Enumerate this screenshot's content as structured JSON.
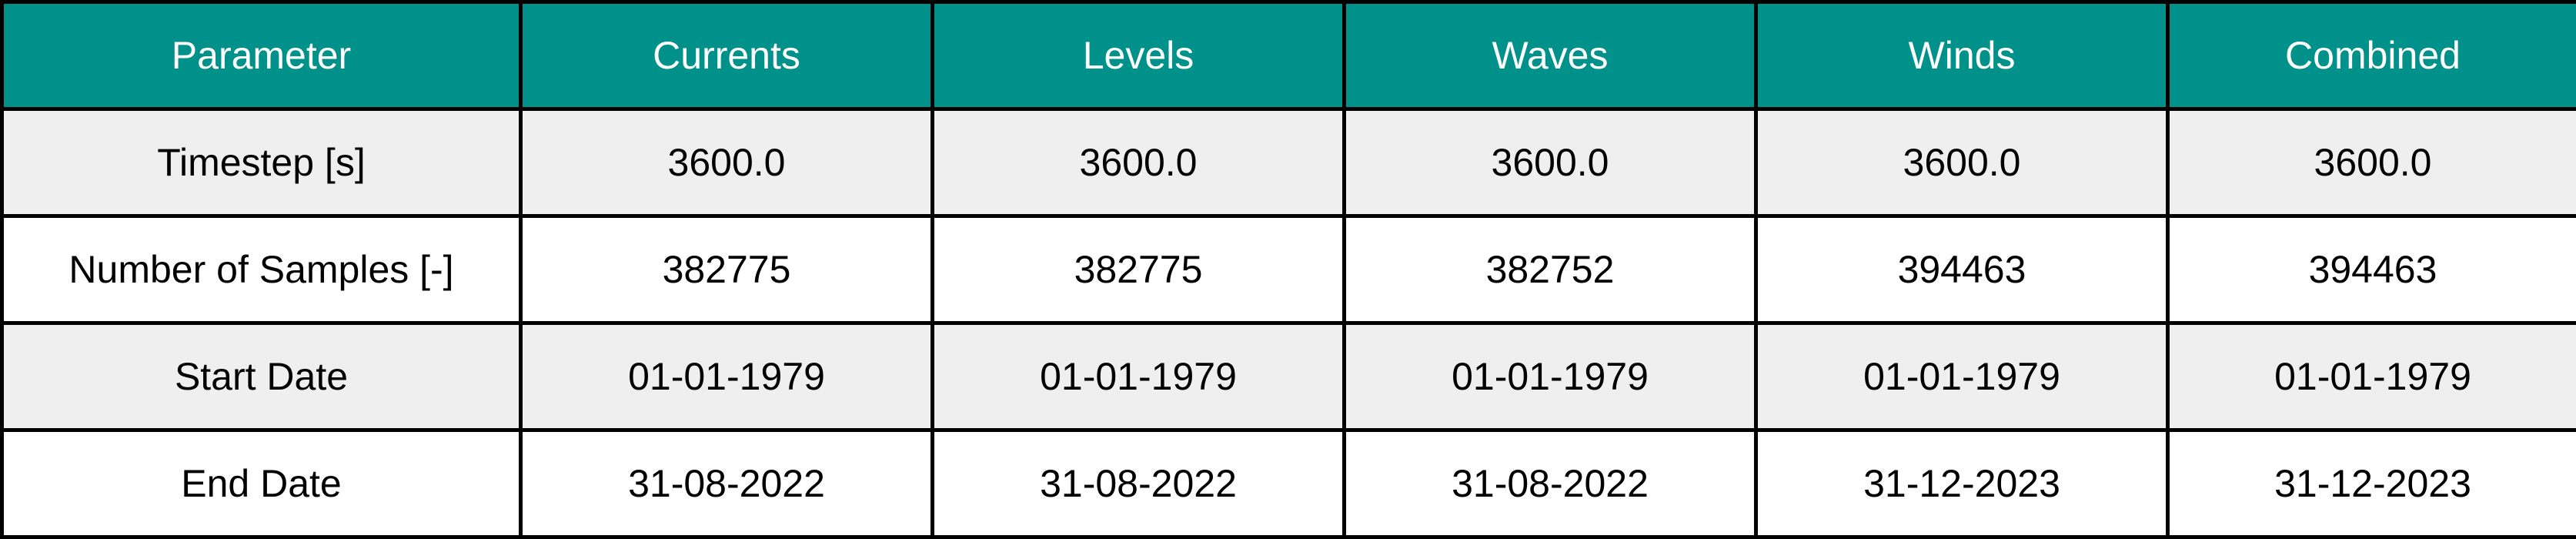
{
  "table": {
    "columns": [
      "Parameter",
      "Currents",
      "Levels",
      "Waves",
      "Winds",
      "Combined"
    ],
    "rows": [
      [
        "Timestep [s]",
        "3600.0",
        "3600.0",
        "3600.0",
        "3600.0",
        "3600.0"
      ],
      [
        "Number of Samples [-]",
        "382775",
        "382775",
        "382752",
        "394463",
        "394463"
      ],
      [
        "Start Date",
        "01-01-1979",
        "01-01-1979",
        "01-01-1979",
        "01-01-1979",
        "01-01-1979"
      ],
      [
        "End Date",
        "31-08-2022",
        "31-08-2022",
        "31-08-2022",
        "31-12-2023",
        "31-12-2023"
      ]
    ]
  },
  "colors": {
    "header_background": "#00918A",
    "header_text": "#FFFFFF",
    "shaded_row": "#EFEFEF",
    "plain_row": "#FFFFFF",
    "border": "#000000"
  }
}
